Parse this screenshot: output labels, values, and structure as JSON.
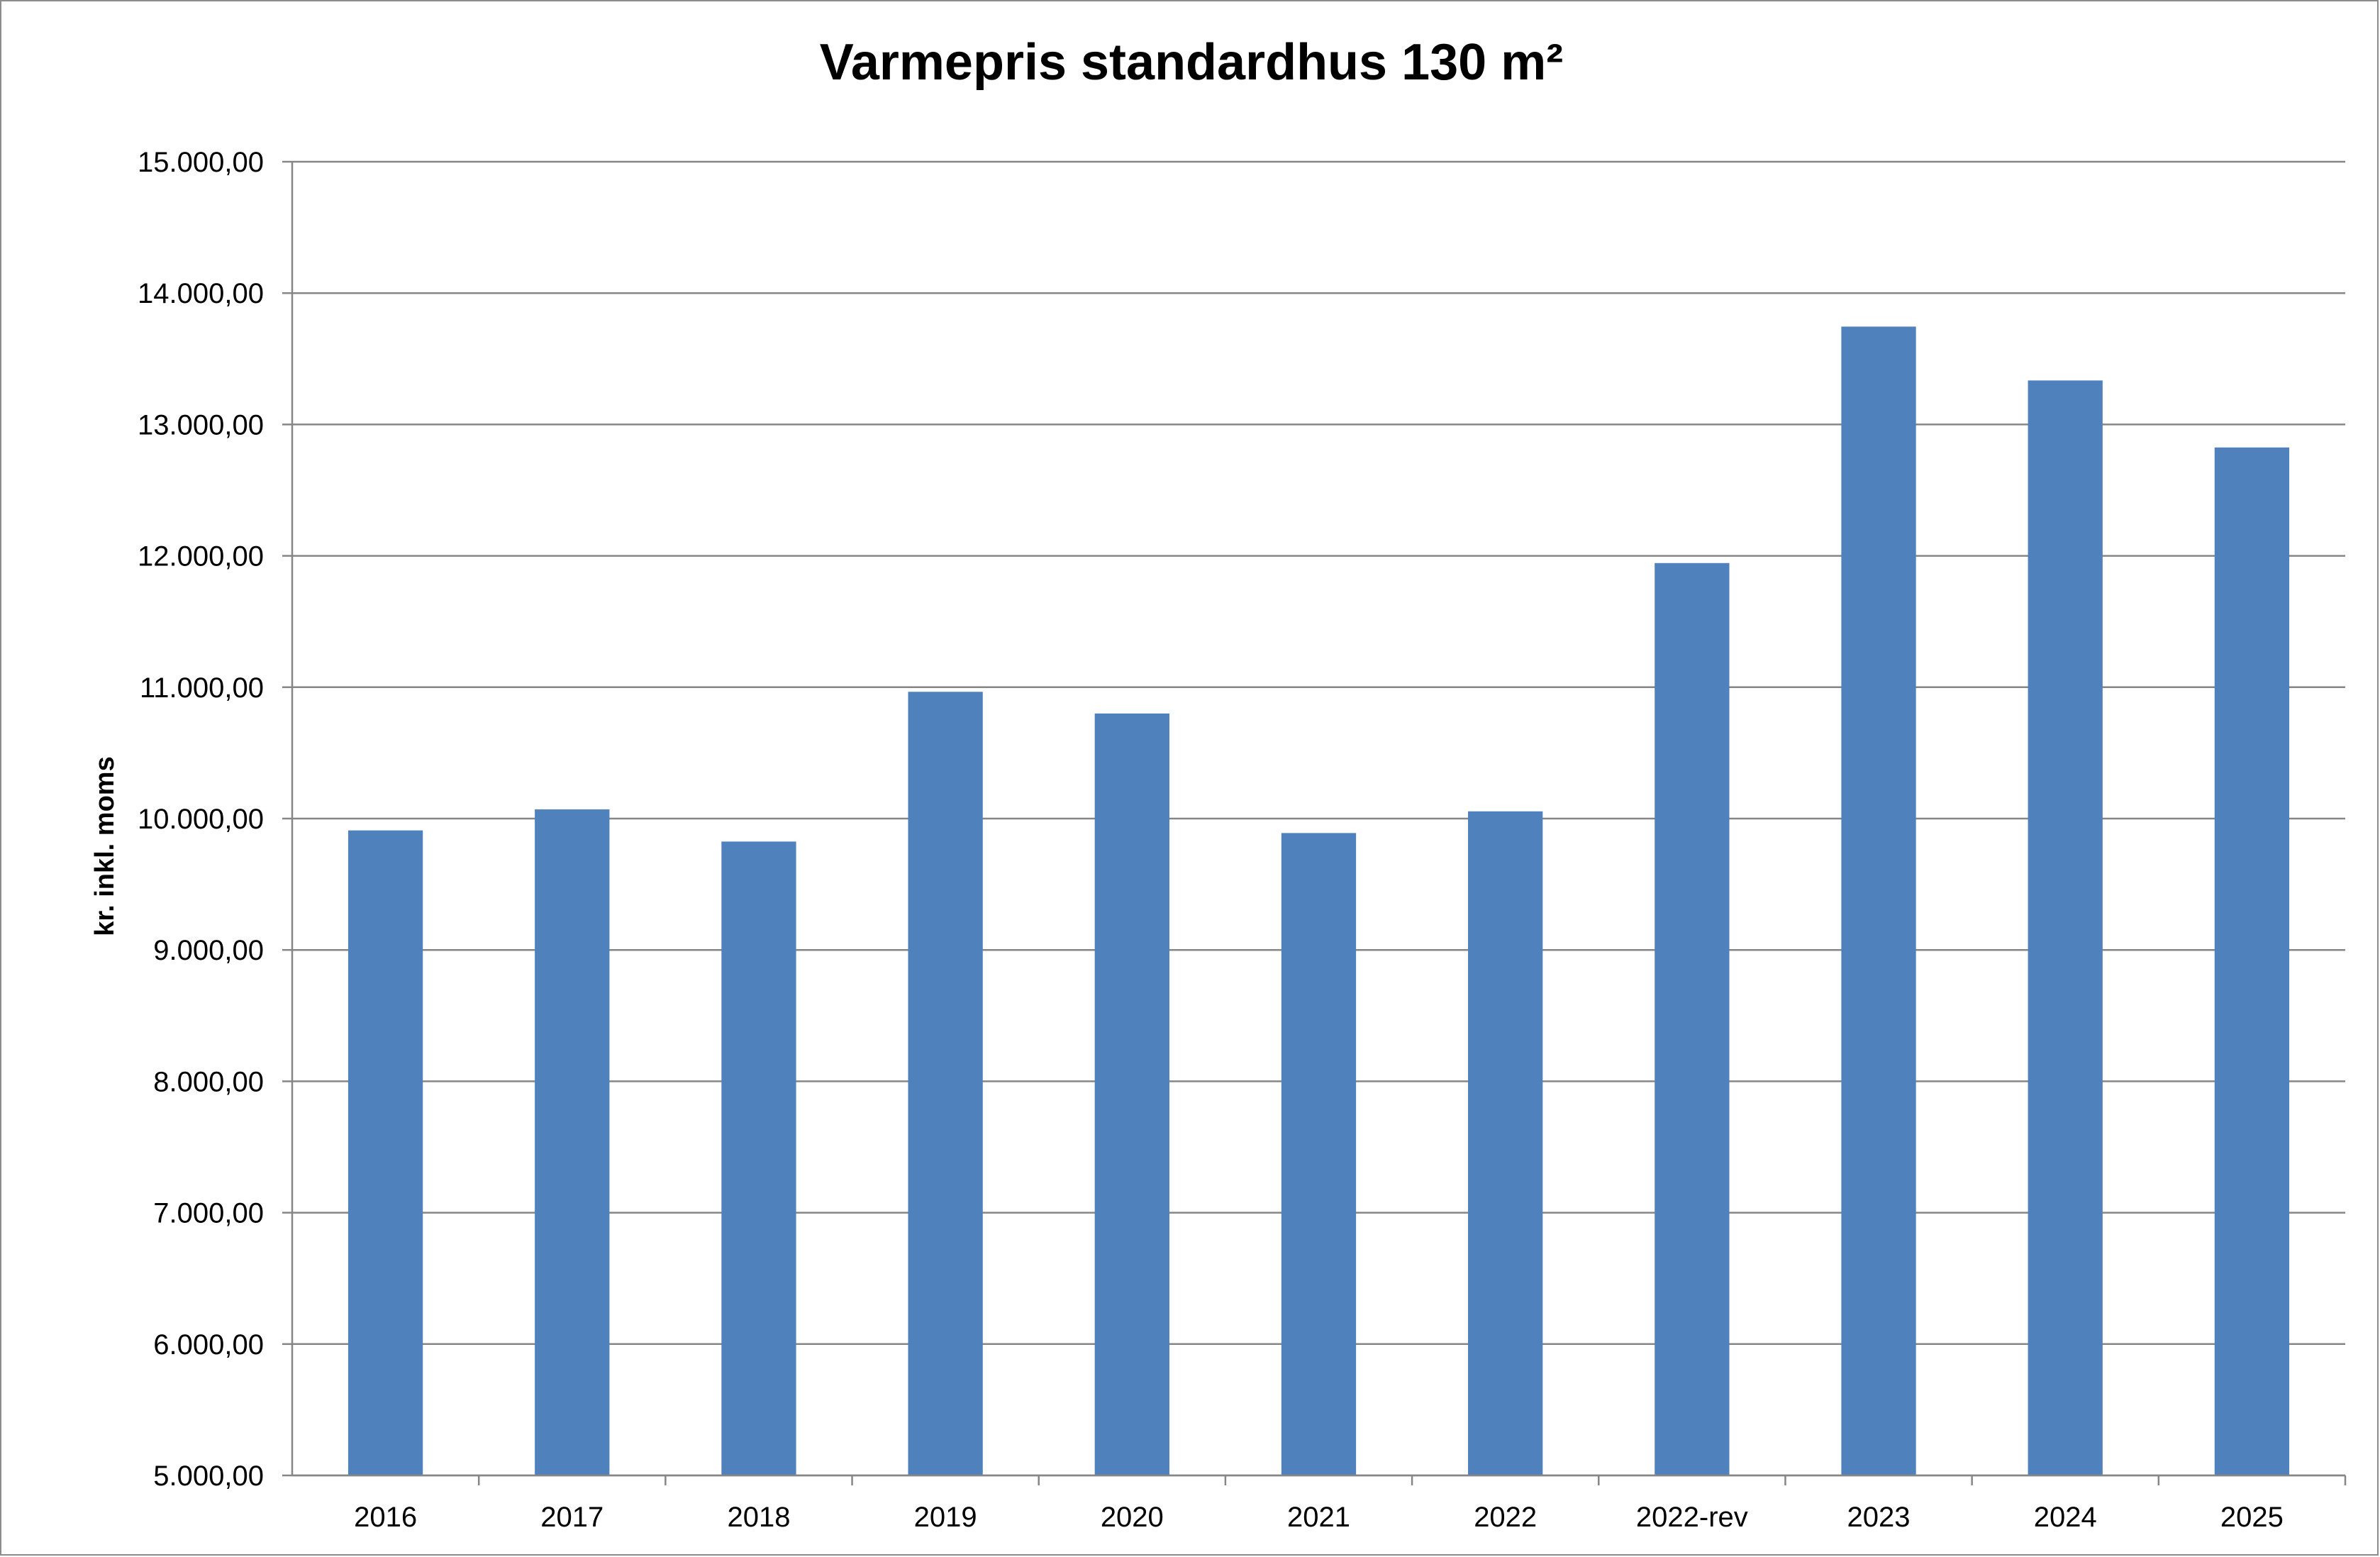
{
  "chart_data": {
    "type": "bar",
    "title": "Varmepris standardhus 130 m²",
    "xlabel": "",
    "ylabel": "kr. inkl. moms",
    "categories": [
      "2016",
      "2017",
      "2018",
      "2019",
      "2020",
      "2021",
      "2022",
      "2022-rev",
      "2023",
      "2024",
      "2025"
    ],
    "values": [
      9910,
      10070,
      9825,
      10965,
      10800,
      9890,
      10055,
      11945,
      13745,
      13335,
      12825
    ],
    "ylim": [
      5000,
      15000
    ],
    "yticks": [
      5000,
      6000,
      7000,
      8000,
      9000,
      10000,
      11000,
      12000,
      13000,
      14000,
      15000
    ],
    "ytick_labels": [
      "5.000,00",
      "6.000,00",
      "7.000,00",
      "8.000,00",
      "9.000,00",
      "10.000,00",
      "11.000,00",
      "12.000,00",
      "13.000,00",
      "14.000,00",
      "15.000,00"
    ],
    "bar_color": "#4f81bd",
    "grid": true,
    "legend": "none"
  }
}
